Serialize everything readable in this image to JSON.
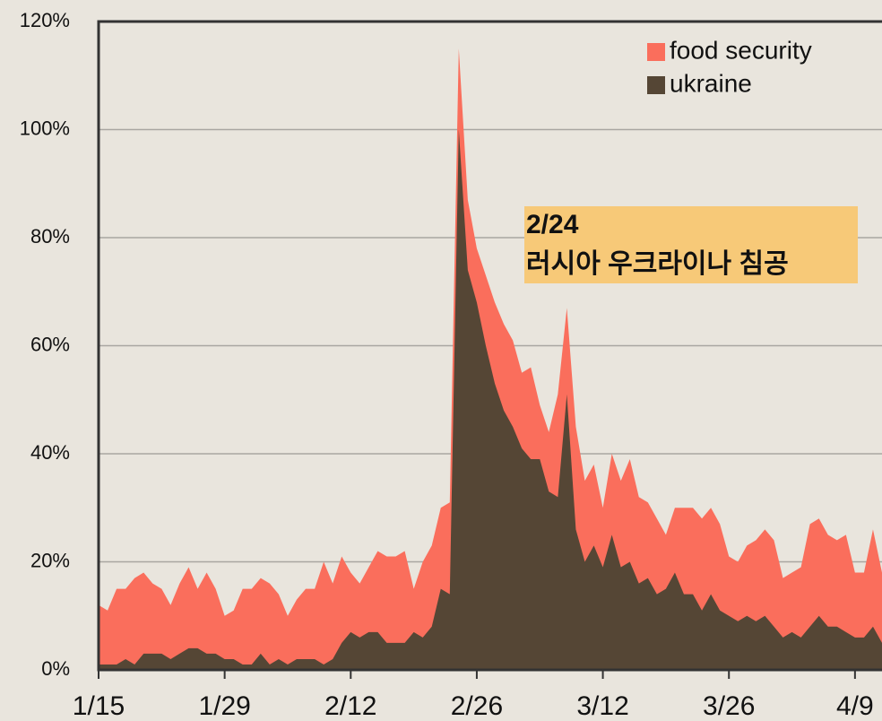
{
  "chart_data": {
    "type": "area",
    "categories": [
      "1/15",
      null,
      null,
      null,
      null,
      null,
      null,
      null,
      null,
      null,
      null,
      null,
      null,
      null,
      "1/29",
      null,
      null,
      null,
      null,
      null,
      null,
      null,
      null,
      null,
      null,
      null,
      null,
      null,
      "2/12",
      null,
      null,
      null,
      null,
      null,
      null,
      null,
      null,
      null,
      null,
      null,
      null,
      null,
      "2/26",
      null,
      null,
      null,
      null,
      null,
      null,
      null,
      null,
      null,
      null,
      null,
      null,
      null,
      "3/12",
      null,
      null,
      null,
      null,
      null,
      null,
      null,
      null,
      null,
      null,
      null,
      null,
      null,
      "3/26",
      null,
      null,
      null,
      null,
      null,
      null,
      null,
      null,
      null,
      null,
      null,
      null,
      null,
      "4/9",
      null,
      null,
      null
    ],
    "series": [
      {
        "name": "food security",
        "color": "#fa6e5c",
        "values": [
          12,
          11,
          15,
          15,
          17,
          18,
          16,
          15,
          12,
          16,
          19,
          15,
          18,
          15,
          10,
          11,
          15,
          15,
          17,
          16,
          14,
          10,
          13,
          15,
          15,
          20,
          16,
          21,
          18,
          16,
          19,
          22,
          21,
          21,
          22,
          15,
          20,
          23,
          30,
          31,
          115,
          87,
          78,
          73,
          68,
          64,
          61,
          55,
          56,
          49,
          44,
          51,
          67,
          45,
          35,
          38,
          30,
          40,
          35,
          39,
          32,
          31,
          28,
          25,
          30,
          30,
          30,
          28,
          30,
          27,
          21,
          20,
          23,
          24,
          26,
          24,
          17,
          18,
          19,
          27,
          28,
          25,
          24,
          25,
          18,
          18,
          26,
          18
        ]
      },
      {
        "name": "ukraine",
        "color": "#554635",
        "values": [
          1,
          1,
          1,
          2,
          1,
          3,
          3,
          3,
          2,
          3,
          4,
          4,
          3,
          3,
          2,
          2,
          1,
          1,
          3,
          1,
          2,
          1,
          2,
          2,
          2,
          1,
          2,
          5,
          7,
          6,
          7,
          7,
          5,
          5,
          5,
          7,
          6,
          8,
          15,
          14,
          100,
          74,
          68,
          60,
          53,
          48,
          45,
          41,
          39,
          39,
          33,
          32,
          51,
          26,
          20,
          23,
          19,
          25,
          19,
          20,
          16,
          17,
          14,
          15,
          18,
          14,
          14,
          11,
          14,
          11,
          10,
          9,
          10,
          9,
          10,
          8,
          6,
          7,
          6,
          8,
          10,
          8,
          8,
          7,
          6,
          6,
          8,
          5
        ]
      }
    ],
    "ylim": [
      0,
      120
    ],
    "yticks": [
      {
        "value": 0,
        "label": "0%"
      },
      {
        "value": 20,
        "label": "20%"
      },
      {
        "value": 40,
        "label": "40%"
      },
      {
        "value": 60,
        "label": "60%"
      },
      {
        "value": 80,
        "label": "80%"
      },
      {
        "value": 100,
        "label": "100%"
      },
      {
        "value": 120,
        "label": "120%"
      }
    ],
    "grid": true,
    "legend": "upper right",
    "annotation": {
      "date": "2/24",
      "text": "러시아 우크라이나 침공"
    }
  }
}
